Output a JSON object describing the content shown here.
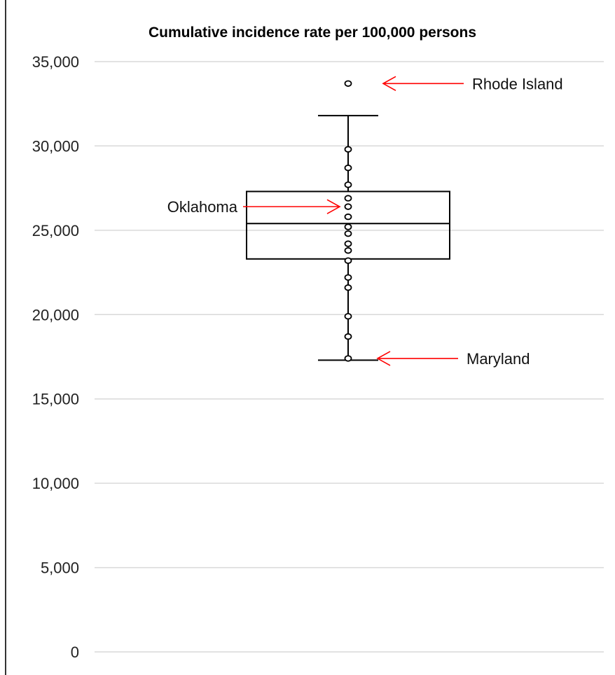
{
  "chart_data": {
    "type": "box",
    "title": "Cumulative incidence rate per 100,000 persons",
    "ylim": [
      0,
      35000
    ],
    "yticks": [
      0,
      5000,
      10000,
      15000,
      20000,
      25000,
      30000,
      35000
    ],
    "ytick_labels": [
      "0",
      "5,000",
      "10,000",
      "15,000",
      "20,000",
      "25,000",
      "30,000",
      "35,000"
    ],
    "grid": true,
    "box": {
      "whisker_low": 17300,
      "q1": 23300,
      "median": 25400,
      "q3": 27300,
      "whisker_high": 31800
    },
    "points": [
      33700,
      29800,
      28700,
      27700,
      26900,
      26400,
      25800,
      25200,
      24800,
      24200,
      23800,
      23200,
      22200,
      21600,
      19900,
      18700,
      17400
    ],
    "annotations": [
      {
        "label": "Rhode Island",
        "value": 33700,
        "side": "right"
      },
      {
        "label": "Oklahoma",
        "value": 26400,
        "side": "left"
      },
      {
        "label": "Maryland",
        "value": 17400,
        "side": "right"
      }
    ],
    "colors": {
      "arrow": "#ff0000",
      "box": "#000000",
      "grid": "#d9d9d9"
    }
  }
}
